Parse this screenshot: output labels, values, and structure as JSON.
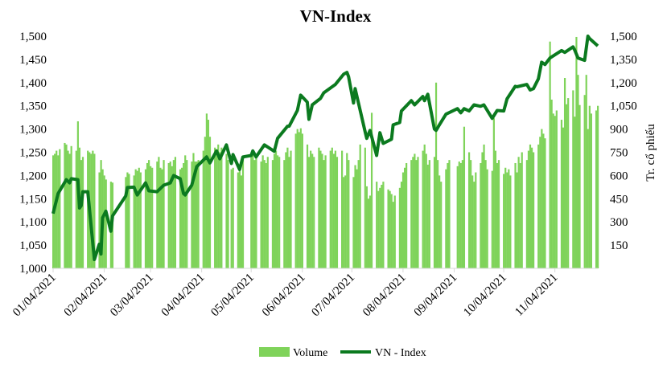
{
  "chart_data": {
    "type": "bar+line",
    "title": "VN-Index",
    "xlabel": "",
    "ylabel_left": "",
    "ylabel_right": "Tr. cổ phiếu",
    "year": 2021,
    "x_range": [
      "01/04/2021",
      "11/30/2021"
    ],
    "x_ticks": [
      "01/04/2021",
      "02/04/2021",
      "03/04/2021",
      "04/04/2021",
      "05/04/2021",
      "06/04/2021",
      "07/04/2021",
      "08/04/2021",
      "09/04/2021",
      "10/04/2021",
      "11/04/2021"
    ],
    "y_left": {
      "min": 1000,
      "max": 1500,
      "ticks": [
        "1,000",
        "1,050",
        "1,100",
        "1,150",
        "1,200",
        "1,250",
        "1,300",
        "1,350",
        "1,400",
        "1,450",
        "1,500"
      ]
    },
    "y_right": {
      "min": 0,
      "max": 1500,
      "ticks": [
        "150",
        "300",
        "450",
        "600",
        "750",
        "900",
        "1,050",
        "1,200",
        "1,350",
        "1,500"
      ]
    },
    "grid": false,
    "legend_position": "bottom",
    "colors": {
      "volume": "#7fd35a",
      "index": "#0b7a1f"
    },
    "series": [
      {
        "name": "Volume",
        "type": "bar",
        "axis": "right",
        "by_month": [
          [
            730,
            740,
            760,
            730,
            770,
            810,
            800,
            760,
            740,
            790,
            760,
            950,
            780,
            700,
            720,
            760,
            750,
            740,
            760,
            740
          ],
          [
            620,
            700,
            640,
            600,
            574,
            560,
            554,
            590,
            620,
            610,
            600,
            640,
            630,
            650,
            620
          ],
          [
            640,
            680,
            700,
            660,
            650,
            690,
            720,
            650,
            640,
            700,
            680,
            690,
            660,
            700,
            720,
            640,
            650,
            680,
            730,
            700,
            690,
            745,
            690
          ],
          [
            690,
            700,
            760,
            850,
            1000,
            960,
            850,
            780,
            760,
            800,
            750,
            780,
            740,
            700,
            640,
            650,
            620,
            640,
            600,
            700
          ],
          [
            720,
            740,
            700,
            720,
            690,
            730,
            700,
            680,
            720,
            700,
            740,
            760,
            730,
            720,
            700,
            750,
            780,
            720,
            760,
            870
          ],
          [
            900,
            880,
            905,
            870,
            800,
            720,
            760,
            740,
            720,
            780,
            760,
            740,
            700,
            730,
            760,
            780,
            740,
            760,
            720,
            760,
            590,
            600
          ],
          [
            745,
            700,
            590,
            667,
            640,
            700,
            800,
            780,
            530,
            450,
            470,
            1005,
            560,
            500,
            520,
            540,
            560,
            510,
            500,
            480,
            430,
            470
          ],
          [
            520,
            560,
            620,
            650,
            680,
            700,
            720,
            740,
            700,
            720,
            760,
            800,
            740,
            670,
            700,
            720,
            1200,
            700,
            600,
            560,
            640,
            680
          ],
          [
            700,
            660,
            690,
            680,
            700,
            915,
            750,
            700,
            600,
            560,
            620,
            680,
            750,
            800,
            700,
            640,
            630,
            970,
            760,
            680
          ],
          [
            700,
            610,
            650,
            620,
            640,
            600,
            680,
            620,
            720,
            680,
            750,
            700,
            760,
            800,
            780,
            750,
            800,
            850,
            900,
            870,
            840
          ],
          [
            1465,
            1090,
            1000,
            985,
            1020,
            960,
            910,
            1230,
            1060,
            1100,
            1150,
            980,
            1495,
            1250,
            1055,
            1120,
            1250,
            900,
            1050,
            1000,
            1020,
            1050
          ]
        ]
      },
      {
        "name": "VN - Index",
        "type": "line",
        "axis": "left",
        "points": [
          [
            "01/04",
            1118
          ],
          [
            "01/07",
            1161
          ],
          [
            "01/12",
            1191
          ],
          [
            "01/14",
            1184
          ],
          [
            "01/15",
            1193
          ],
          [
            "01/19",
            1191
          ],
          [
            "01/20",
            1130
          ],
          [
            "01/21",
            1135
          ],
          [
            "01/22",
            1165
          ],
          [
            "01/25",
            1165
          ],
          [
            "01/29",
            1019
          ],
          [
            "02/01",
            1052
          ],
          [
            "02/02",
            1031
          ],
          [
            "02/03",
            1109
          ],
          [
            "02/05",
            1123
          ],
          [
            "02/08",
            1080
          ],
          [
            "02/09",
            1113
          ],
          [
            "02/17",
            1156
          ],
          [
            "02/18",
            1174
          ],
          [
            "02/22",
            1175
          ],
          [
            "02/24",
            1158
          ],
          [
            "03/01",
            1184
          ],
          [
            "03/03",
            1167
          ],
          [
            "03/08",
            1165
          ],
          [
            "03/12",
            1179
          ],
          [
            "03/16",
            1184
          ],
          [
            "03/18",
            1200
          ],
          [
            "03/22",
            1193
          ],
          [
            "03/24",
            1161
          ],
          [
            "03/25",
            1158
          ],
          [
            "03/29",
            1179
          ],
          [
            "04/01",
            1219
          ],
          [
            "04/07",
            1240
          ],
          [
            "04/09",
            1227
          ],
          [
            "04/13",
            1253
          ],
          [
            "04/15",
            1236
          ],
          [
            "04/19",
            1266
          ],
          [
            "04/22",
            1226
          ],
          [
            "04/23",
            1245
          ],
          [
            "04/27",
            1213
          ],
          [
            "04/29",
            1240
          ],
          [
            "05/04",
            1243
          ],
          [
            "05/05",
            1253
          ],
          [
            "05/07",
            1240
          ],
          [
            "05/12",
            1266
          ],
          [
            "05/18",
            1252
          ],
          [
            "05/20",
            1280
          ],
          [
            "05/26",
            1306
          ],
          [
            "05/27",
            1306
          ],
          [
            "06/01",
            1340
          ],
          [
            "06/03",
            1373
          ],
          [
            "06/07",
            1358
          ],
          [
            "06/08",
            1321
          ],
          [
            "06/10",
            1352
          ],
          [
            "06/15",
            1366
          ],
          [
            "06/17",
            1378
          ],
          [
            "06/24",
            1396
          ],
          [
            "06/29",
            1418
          ],
          [
            "07/01",
            1422
          ],
          [
            "07/02",
            1413
          ],
          [
            "07/05",
            1356
          ],
          [
            "07/06",
            1387
          ],
          [
            "07/12",
            1295
          ],
          [
            "07/13",
            1280
          ],
          [
            "07/15",
            1297
          ],
          [
            "07/19",
            1243
          ],
          [
            "07/21",
            1292
          ],
          [
            "07/23",
            1269
          ],
          [
            "07/28",
            1278
          ],
          [
            "07/29",
            1309
          ],
          [
            "08/02",
            1314
          ],
          [
            "08/03",
            1339
          ],
          [
            "08/09",
            1361
          ],
          [
            "08/11",
            1352
          ],
          [
            "08/16",
            1370
          ],
          [
            "08/17",
            1361
          ],
          [
            "08/19",
            1375
          ],
          [
            "08/23",
            1300
          ],
          [
            "08/24",
            1297
          ],
          [
            "08/26",
            1309
          ],
          [
            "08/30",
            1332
          ],
          [
            "09/06",
            1344
          ],
          [
            "09/08",
            1335
          ],
          [
            "09/10",
            1344
          ],
          [
            "09/13",
            1339
          ],
          [
            "09/16",
            1352
          ],
          [
            "09/20",
            1349
          ],
          [
            "09/22",
            1352
          ],
          [
            "09/27",
            1323
          ],
          [
            "09/30",
            1340
          ],
          [
            "10/04",
            1339
          ],
          [
            "10/06",
            1365
          ],
          [
            "10/11",
            1392
          ],
          [
            "10/12",
            1391
          ],
          [
            "10/18",
            1396
          ],
          [
            "10/20",
            1384
          ],
          [
            "10/22",
            1387
          ],
          [
            "10/25",
            1408
          ],
          [
            "10/27",
            1444
          ],
          [
            "10/29",
            1439
          ],
          [
            "11/01",
            1453
          ],
          [
            "11/08",
            1469
          ],
          [
            "11/10",
            1465
          ],
          [
            "11/15",
            1477
          ],
          [
            "11/16",
            1470
          ],
          [
            "11/18",
            1453
          ],
          [
            "11/22",
            1448
          ],
          [
            "11/24",
            1500
          ],
          [
            "11/25",
            1495
          ],
          [
            "11/30",
            1479
          ]
        ]
      }
    ],
    "legend": [
      "Volume",
      "VN - Index"
    ]
  }
}
